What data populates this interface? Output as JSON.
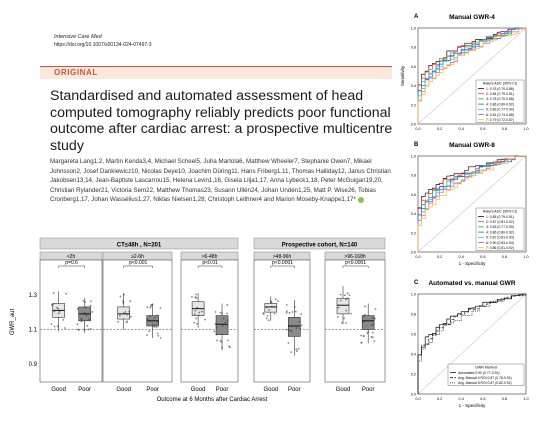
{
  "paper": {
    "journal": "Intensive Care Med",
    "doi": "https://doi.org/10.1007/s00134-024-07497-3",
    "section": "ORIGINAL",
    "title": "Standardised and automated assessment of head computed tomography reliably predicts poor functional outcome after cardiac arrest: a prospective multicentre study",
    "authors": "Margareta Lang1,2, Martin Kenda3,4, Michael Scheel5, Juha Martola6, Matthew Wheeler7, Stephanie Owen7, Mikael Johnsson2, Josef Dankiewicz10, Nicolas Deye10, Joachim Düring11, Hans Friberg1,11, Thomas Halliday12, Janus Christian Jakobsen13,14, Jean-Baptiste Lascarrou15, Helena Levin1,16, Gisela Lilja1,17, Anna Lybeck1,18, Peter McGuigan19,20, Christian Rylander21, Victoria Sem22, Matthew Thomas23, Susann Ullén24, Johan Undén1,25, Matt P. Wise26, Tobias Cronberg1,17, Johan Wassélius1,27, Niklas Nielsen1,28, Christoph Leithner4 and Marion Moseby-Knappe1,17*"
  },
  "boxplot": {
    "ylabel": "GWR_aut",
    "xlabel": "Outcome at 6 Months after Cardiac Arrest",
    "yticks": [
      "0.9",
      "1.1",
      "1.3"
    ],
    "groups": [
      {
        "label": "CT≤48h , N=201",
        "panels": [
          {
            "title": "<2h",
            "p": "p=0.6"
          },
          {
            "title": "≥2-6h",
            "p": "p<0.001"
          },
          {
            "title": ">6-48h",
            "p": "p<0.01"
          }
        ]
      },
      {
        "label": "Prospective cohort, N=140",
        "panels": [
          {
            "title": ">48-96h",
            "p": "p<0.0001"
          },
          {
            "title": ">96-168h",
            "p": "p<0.0001"
          }
        ]
      }
    ],
    "categories": [
      "Good",
      "Poor"
    ]
  },
  "roc_panels": [
    {
      "letter": "A",
      "title": "Manual GWR-4",
      "legend_title": "Raters AUC (95% CI)",
      "entries": [
        "1: 0.76 (0.70-0.86)",
        "2: 0.84 (0.79-0.91)",
        "3: 0.78 (0.70-0.86)",
        "4: 0.86 (0.80-0.92)",
        "5: 0.83 (0.77-0.90)",
        "6: 0.81 (0.74-0.88)",
        "7: 0.79 (0.72-0.87)"
      ],
      "ylabel": "Sensitivity"
    },
    {
      "letter": "B",
      "title": "Manual GWR-8",
      "legend_title": "Raters AUC (95% CI)",
      "entries": [
        "1: 0.85 (0.79-0.91)",
        "2: 0.87 (0.81-0.92)",
        "3: 0.83 (0.77-0.90)",
        "4: 0.86 (0.80-0.92)",
        "5: 0.87 (0.81-0.93)",
        "6: 0.90 (0.83-0.94)",
        "7: 0.86 (0.81-0.92)"
      ],
      "xlabel": "1 - Specificity"
    },
    {
      "letter": "C",
      "title": "Automated vs. manual GWR",
      "legend_title": "GWR Method",
      "entries": [
        "Automated 0.90 (0.77-0.91)",
        "Avg. Manual 4 ROI 0.87 (0.76-0.91)",
        "Avg. Manual 8 ROI 0.87 (0.82-0.92)"
      ],
      "xlabel": "1 - Specificity"
    }
  ],
  "roc_ticks": [
    "0.0",
    "0.2",
    "0.4",
    "0.6",
    "0.8",
    "1.0"
  ],
  "colors": {
    "accent": "#c8563c",
    "badge_bg": "#fde7dc",
    "strip_bg": "#d9d9d9"
  },
  "chart_data": [
    {
      "type": "box",
      "title": "",
      "ylabel": "GWR_aut",
      "xlabel": "Outcome at 6 Months after Cardiac Arrest",
      "ylim": [
        0.82,
        1.42
      ],
      "panels": [
        {
          "name": "<2h",
          "Good": {
            "q1": 1.17,
            "median": 1.21,
            "q3": 1.25,
            "low": 1.09,
            "high": 1.32
          },
          "Poor": {
            "q1": 1.15,
            "median": 1.19,
            "q3": 1.23,
            "low": 1.08,
            "high": 1.28
          }
        },
        {
          "name": "≥2-6h",
          "Good": {
            "q1": 1.16,
            "median": 1.19,
            "q3": 1.23,
            "low": 1.1,
            "high": 1.31
          },
          "Poor": {
            "q1": 1.12,
            "median": 1.15,
            "q3": 1.18,
            "low": 1.05,
            "high": 1.25
          }
        },
        {
          "name": ">6-48h",
          "Good": {
            "q1": 1.18,
            "median": 1.22,
            "q3": 1.26,
            "low": 1.11,
            "high": 1.31
          },
          "Poor": {
            "q1": 1.07,
            "median": 1.13,
            "q3": 1.18,
            "low": 0.98,
            "high": 1.25
          }
        },
        {
          "name": ">48-96h",
          "Good": {
            "q1": 1.2,
            "median": 1.23,
            "q3": 1.25,
            "low": 1.15,
            "high": 1.29
          },
          "Poor": {
            "q1": 1.06,
            "median": 1.12,
            "q3": 1.17,
            "low": 0.95,
            "high": 1.27
          }
        },
        {
          "name": ">96-168h",
          "Good": {
            "q1": 1.19,
            "median": 1.24,
            "q3": 1.28,
            "low": 1.13,
            "high": 1.35
          },
          "Poor": {
            "q1": 1.1,
            "median": 1.15,
            "q3": 1.18,
            "low": 1.02,
            "high": 1.25
          }
        }
      ]
    }
  ]
}
